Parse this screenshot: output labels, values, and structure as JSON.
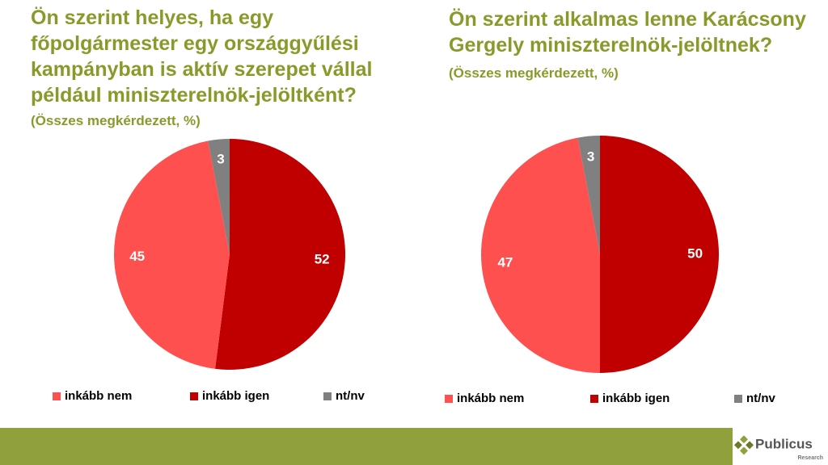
{
  "chart_data": [
    {
      "type": "pie",
      "title": "Ön szerint helyes, ha egy főpolgármester egy országgyűlési kampányban is aktív szerepet vállal például miniszterelnök-jelöltként?",
      "subtitle": "(Összes megkérdezett, %)",
      "categories": [
        "inkább igen",
        "inkább nem",
        "nt/nv"
      ],
      "values": [
        52,
        45,
        3
      ],
      "colors": [
        "#c00000",
        "#ff5050",
        "#808080"
      ]
    },
    {
      "type": "pie",
      "title": "Ön szerint alkalmas lenne Karácsony Gergely miniszterelnök-jelöltnek?",
      "subtitle": "(Összes megkérdezett, %)",
      "categories": [
        "inkább igen",
        "inkább nem",
        "nt/nv"
      ],
      "values": [
        50,
        47,
        3
      ],
      "colors": [
        "#c00000",
        "#ff5050",
        "#808080"
      ]
    }
  ],
  "footer": {
    "brand": "Publicus",
    "sub": "Research"
  }
}
